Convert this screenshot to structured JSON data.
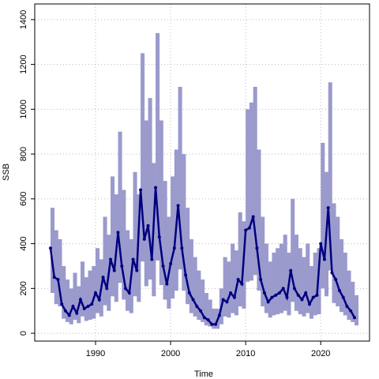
{
  "chart_data": {
    "type": "line",
    "x_label": "Time",
    "y_label": "SSB",
    "x": [
      1984,
      1984.5,
      1985,
      1985.5,
      1986,
      1986.5,
      1987,
      1987.5,
      1988,
      1988.5,
      1989,
      1989.5,
      1990,
      1990.5,
      1991,
      1991.5,
      1992,
      1992.5,
      1993,
      1993.5,
      1994,
      1994.5,
      1995,
      1995.5,
      1996,
      1996.5,
      1997,
      1997.5,
      1998,
      1998.5,
      1999,
      1999.5,
      2000,
      2000.5,
      2001,
      2001.5,
      2002,
      2002.5,
      2003,
      2003.5,
      2004,
      2004.5,
      2005,
      2005.5,
      2006,
      2006.5,
      2007,
      2007.5,
      2008,
      2008.5,
      2009,
      2009.5,
      2010,
      2010.5,
      2011,
      2011.5,
      2012,
      2012.5,
      2013,
      2013.5,
      2014,
      2014.5,
      2015,
      2015.5,
      2016,
      2016.5,
      2017,
      2017.5,
      2018,
      2018.5,
      2019,
      2019.5,
      2020,
      2020.5,
      2021,
      2021.5,
      2022,
      2022.5,
      2023,
      2023.5,
      2024,
      2024.5
    ],
    "values": [
      380,
      250,
      240,
      130,
      100,
      80,
      120,
      90,
      150,
      110,
      120,
      130,
      180,
      150,
      250,
      200,
      330,
      280,
      450,
      300,
      200,
      180,
      330,
      280,
      640,
      420,
      480,
      330,
      650,
      430,
      300,
      220,
      310,
      380,
      570,
      380,
      260,
      180,
      150,
      120,
      100,
      70,
      60,
      40,
      40,
      80,
      150,
      140,
      180,
      160,
      240,
      220,
      460,
      470,
      520,
      380,
      240,
      180,
      140,
      160,
      170,
      180,
      200,
      160,
      280,
      200,
      170,
      150,
      180,
      130,
      160,
      170,
      400,
      330,
      560,
      270,
      240,
      190,
      160,
      120,
      100,
      70
    ],
    "band_upper": [
      560,
      460,
      420,
      300,
      240,
      200,
      270,
      210,
      320,
      250,
      280,
      300,
      380,
      330,
      520,
      440,
      700,
      620,
      900,
      640,
      460,
      420,
      720,
      620,
      1250,
      950,
      1050,
      760,
      1340,
      950,
      680,
      520,
      700,
      820,
      1100,
      800,
      560,
      420,
      340,
      280,
      240,
      180,
      150,
      110,
      110,
      200,
      340,
      320,
      400,
      370,
      540,
      500,
      1000,
      1030,
      1100,
      820,
      520,
      400,
      320,
      360,
      380,
      400,
      440,
      360,
      600,
      440,
      380,
      340,
      400,
      300,
      360,
      380,
      850,
      720,
      1120,
      580,
      520,
      420,
      360,
      280,
      230,
      170
    ],
    "band_lower": [
      180,
      130,
      120,
      65,
      50,
      40,
      60,
      45,
      75,
      55,
      60,
      65,
      90,
      75,
      125,
      100,
      165,
      140,
      225,
      150,
      100,
      90,
      165,
      140,
      320,
      210,
      240,
      165,
      325,
      215,
      150,
      110,
      155,
      190,
      285,
      190,
      130,
      90,
      75,
      60,
      50,
      35,
      30,
      20,
      20,
      40,
      75,
      70,
      90,
      80,
      120,
      110,
      230,
      235,
      260,
      190,
      120,
      90,
      70,
      80,
      85,
      90,
      100,
      80,
      140,
      100,
      85,
      75,
      90,
      65,
      80,
      85,
      200,
      165,
      280,
      135,
      120,
      95,
      80,
      60,
      50,
      35
    ],
    "color": "#000080",
    "band_color": "#9a9acd",
    "xlim": [
      1981.9,
      2026.5
    ],
    "xticks": [
      1990,
      2000,
      2010,
      2020
    ],
    "ylim": [
      -35,
      1470
    ],
    "yticks": [
      0,
      200,
      400,
      600,
      800,
      1000,
      1200,
      1400
    ],
    "grid": true
  }
}
